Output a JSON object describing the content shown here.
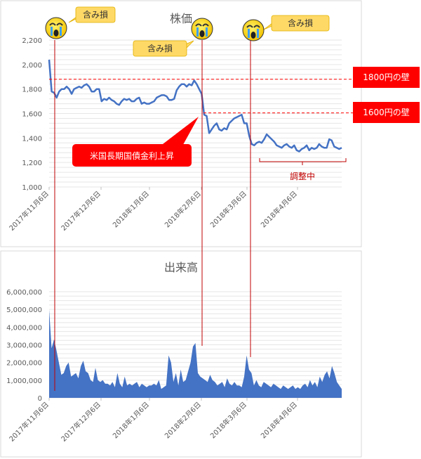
{
  "chart_data": [
    {
      "type": "line",
      "title": "株価",
      "ylim": [
        1000,
        2200
      ],
      "yticks": [
        "1,000",
        "1,200",
        "1,400",
        "1,600",
        "1,800",
        "2,000",
        "2,200"
      ],
      "ytick_values": [
        1000,
        1200,
        1400,
        1600,
        1800,
        2000,
        2200
      ],
      "xticks": [
        "2017年11月6日",
        "2017年12月6日",
        "2018年1月6日",
        "2018年2月6日",
        "2018年3月6日",
        "2018年4月6日"
      ],
      "grid": true,
      "color": "#4472c4",
      "series": [
        {
          "values": [
            2040,
            1780,
            1770,
            1730,
            1780,
            1800,
            1800,
            1820,
            1800,
            1760,
            1800,
            1810,
            1820,
            1810,
            1830,
            1840,
            1820,
            1780,
            1780,
            1800,
            1800,
            1700,
            1720,
            1710,
            1730,
            1710,
            1700,
            1680,
            1670,
            1700,
            1720,
            1710,
            1720,
            1700,
            1700,
            1720,
            1730,
            1680,
            1690,
            1680,
            1680,
            1690,
            1700,
            1730,
            1740,
            1750,
            1750,
            1740,
            1710,
            1710,
            1720,
            1790,
            1820,
            1840,
            1840,
            1820,
            1840,
            1830,
            1870,
            1840,
            1800,
            1760,
            1590,
            1580,
            1440,
            1470,
            1500,
            1520,
            1470,
            1460,
            1480,
            1470,
            1520,
            1540,
            1560,
            1570,
            1580,
            1590,
            1520,
            1520,
            1420,
            1350,
            1340,
            1360,
            1370,
            1360,
            1390,
            1430,
            1410,
            1390,
            1370,
            1340,
            1330,
            1320,
            1340,
            1350,
            1330,
            1320,
            1340,
            1300,
            1290,
            1310,
            1320,
            1340,
            1300,
            1320,
            1310,
            1320,
            1350,
            1330,
            1320,
            1320,
            1390,
            1380,
            1330,
            1320,
            1310,
            1320
          ]
        }
      ],
      "annotations": {
        "wall_1800": {
          "label": "1800円の壁",
          "y": 1880,
          "color": "#ff0000"
        },
        "wall_1600": {
          "label": "1600円の壁",
          "y": 1605,
          "color": "#ff0000"
        },
        "rate_rise": {
          "label": "米国長期国債金利上昇",
          "color": "#ff0000"
        },
        "adjusting": {
          "label": "調整中",
          "color": "#c00000"
        },
        "loss_labels": [
          "含み損",
          "含み損",
          "含み損"
        ],
        "callout_color": "#ffd966",
        "marker_line_color": "#c00000"
      }
    },
    {
      "type": "area",
      "title": "出来高",
      "ylim": [
        0,
        6000000
      ],
      "yticks": [
        "0",
        "1,000,000",
        "2,000,000",
        "3,000,000",
        "4,000,000",
        "5,000,000",
        "6,000,000"
      ],
      "ytick_values": [
        0,
        1000000,
        2000000,
        3000000,
        4000000,
        5000000,
        6000000
      ],
      "xticks": [
        "2017年11月6日",
        "2017年12月6日",
        "2018年1月6日",
        "2018年2月6日",
        "2018年3月6日",
        "2018年4月6日"
      ],
      "grid": true,
      "color": "#4472c4",
      "series": [
        {
          "values": [
            5000000,
            2800000,
            3300000,
            2700000,
            2000000,
            1300000,
            1400000,
            1800000,
            2000000,
            1200000,
            1300000,
            1400000,
            1100000,
            1800000,
            2100000,
            1500000,
            1400000,
            1000000,
            900000,
            1700000,
            1000000,
            900000,
            1000000,
            800000,
            800000,
            700000,
            900000,
            600000,
            1400000,
            800000,
            600000,
            1200000,
            700000,
            800000,
            700000,
            800000,
            900000,
            600000,
            800000,
            700000,
            600000,
            700000,
            700000,
            800000,
            700000,
            1000000,
            500000,
            600000,
            700000,
            2400000,
            2000000,
            900000,
            1400000,
            700000,
            1600000,
            900000,
            1000000,
            1500000,
            2000000,
            2900000,
            3100000,
            1400000,
            1200000,
            1100000,
            1000000,
            900000,
            1300000,
            1000000,
            900000,
            700000,
            800000,
            900000,
            600000,
            1100000,
            800000,
            700000,
            900000,
            700000,
            700000,
            600000,
            1200000,
            2400000,
            1600000,
            1400000,
            700000,
            1000000,
            700000,
            600000,
            900000,
            800000,
            700000,
            600000,
            800000,
            700000,
            600000,
            500000,
            700000,
            600000,
            500000,
            600000,
            700000,
            500000,
            600000,
            500000,
            700000,
            800000,
            600000,
            1000000,
            700000,
            900000,
            600000,
            1200000,
            900000,
            1300000,
            1500000,
            1100000,
            1800000,
            1400000,
            900000,
            700000,
            500000
          ]
        }
      ]
    }
  ]
}
